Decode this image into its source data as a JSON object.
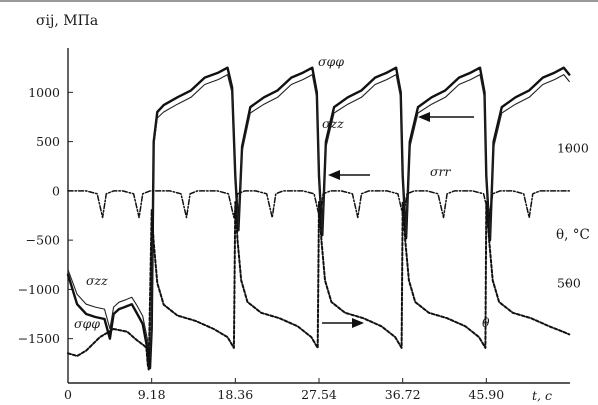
{
  "chart_data": {
    "type": "line",
    "title": "",
    "ylabel": "σij, МПа",
    "xlabel": "t, с",
    "y2label": "θ, °C",
    "xlim": [
      0,
      55.08
    ],
    "ylim": [
      -1950,
      1450
    ],
    "y2lim": [
      130,
      1370
    ],
    "x_ticks": [
      "0",
      "9.18",
      "18.36",
      "27.54",
      "36.72",
      "45.90"
    ],
    "x_tick_values": [
      0,
      9.18,
      18.36,
      27.54,
      36.72,
      45.9
    ],
    "y_ticks": [
      "1000",
      "500",
      "0",
      "−500",
      "−1000",
      "−1500"
    ],
    "y_tick_values": [
      1000,
      500,
      0,
      -500,
      -1000,
      -1500
    ],
    "y2_ticks": [
      "1000",
      "500"
    ],
    "y2_tick_values": [
      1000,
      500
    ],
    "grid": false,
    "series": [
      {
        "name": "σφφ",
        "axis": "left",
        "style": "solid-thick",
        "x": [
          0,
          1.0,
          2.0,
          3.0,
          4.0,
          4.6,
          5.0,
          5.6,
          6.2,
          7.0,
          7.6,
          8.2,
          8.7,
          9.0,
          9.18,
          9.4,
          9.8,
          10.5,
          12.0,
          13.5,
          15.0,
          16.5,
          17.5,
          18.0,
          18.36,
          18.7,
          19.1,
          20.0,
          21.5,
          23.0,
          24.5,
          25.8,
          26.8,
          27.3,
          27.54,
          27.9,
          28.3,
          29.2,
          30.7,
          32.2,
          33.7,
          35.0,
          36.0,
          36.5,
          36.72,
          37.1,
          37.5,
          38.4,
          39.9,
          41.4,
          42.9,
          44.2,
          45.2,
          45.7,
          45.9,
          46.3,
          46.7,
          47.6,
          49.1,
          50.6,
          52.1,
          53.4,
          54.4,
          55.0
        ],
        "y": [
          -850,
          -1150,
          -1250,
          -1280,
          -1300,
          -1500,
          -1250,
          -1200,
          -1180,
          -1150,
          -1250,
          -1350,
          -1600,
          -1800,
          -1400,
          500,
          800,
          870,
          950,
          1020,
          1150,
          1200,
          1250,
          1050,
          150,
          -400,
          450,
          850,
          950,
          1020,
          1150,
          1200,
          1250,
          1000,
          150,
          -450,
          500,
          850,
          950,
          1020,
          1150,
          1200,
          1250,
          1000,
          150,
          -480,
          500,
          850,
          950,
          1020,
          1150,
          1200,
          1250,
          1000,
          150,
          -500,
          500,
          850,
          950,
          1020,
          1150,
          1200,
          1250,
          1180
        ]
      },
      {
        "name": "σzz",
        "axis": "left",
        "style": "solid-thin",
        "x": [
          0,
          1.0,
          2.0,
          3.0,
          4.0,
          4.6,
          5.0,
          5.6,
          6.2,
          7.0,
          7.6,
          8.2,
          8.7,
          9.0,
          9.18,
          9.4,
          9.8,
          10.5,
          12.0,
          13.5,
          15.0,
          16.5,
          17.5,
          18.0,
          18.36,
          18.7,
          19.1,
          20.0,
          21.5,
          23.0,
          24.5,
          25.8,
          26.8,
          27.3,
          27.54,
          27.9,
          28.3,
          29.2,
          30.7,
          32.2,
          33.7,
          35.0,
          36.0,
          36.5,
          36.72,
          37.1,
          37.5,
          38.4,
          39.9,
          41.4,
          42.9,
          44.2,
          45.2,
          45.7,
          45.9,
          46.3,
          46.7,
          47.6,
          49.1,
          50.6,
          52.1,
          53.4,
          54.4,
          55.0
        ],
        "y": [
          -800,
          -1050,
          -1150,
          -1180,
          -1200,
          -1400,
          -1180,
          -1130,
          -1110,
          -1080,
          -1170,
          -1270,
          -1500,
          -1700,
          -1300,
          450,
          740,
          800,
          880,
          950,
          1080,
          1130,
          1180,
          990,
          130,
          -380,
          400,
          790,
          880,
          950,
          1080,
          1130,
          1180,
          940,
          130,
          -420,
          440,
          790,
          880,
          950,
          1080,
          1130,
          1180,
          940,
          130,
          -450,
          440,
          790,
          880,
          950,
          1080,
          1130,
          1180,
          940,
          130,
          -470,
          440,
          790,
          880,
          950,
          1080,
          1130,
          1180,
          1110
        ]
      },
      {
        "name": "σrr",
        "axis": "left",
        "style": "dash-dot",
        "x": [
          0,
          2.0,
          3.2,
          3.8,
          4.2,
          5.0,
          6.0,
          7.2,
          7.8,
          8.2,
          9.0,
          11.2,
          12.4,
          13.0,
          13.4,
          14.2,
          16.4,
          17.6,
          18.2,
          18.6,
          19.4,
          20.6,
          21.8,
          22.4,
          22.8,
          23.6,
          25.8,
          27.0,
          27.6,
          28.0,
          28.8,
          30.0,
          31.2,
          31.8,
          32.2,
          33.0,
          35.0,
          36.2,
          36.8,
          37.2,
          38.0,
          39.4,
          40.6,
          41.2,
          41.6,
          42.4,
          44.4,
          45.6,
          46.2,
          46.6,
          47.4,
          48.8,
          50.0,
          50.6,
          51.0,
          51.8,
          53.4,
          55.0
        ],
        "y": [
          0,
          0,
          -30,
          -270,
          -30,
          0,
          0,
          -30,
          -270,
          -30,
          0,
          0,
          -30,
          -270,
          -30,
          0,
          0,
          -30,
          -270,
          -30,
          0,
          0,
          -30,
          -270,
          -30,
          0,
          0,
          -30,
          -270,
          -30,
          0,
          0,
          -30,
          -270,
          -30,
          0,
          0,
          -30,
          -270,
          -30,
          0,
          0,
          -30,
          -270,
          -30,
          0,
          0,
          -30,
          -270,
          -30,
          0,
          0,
          -30,
          -270,
          -30,
          0,
          0,
          0
        ]
      },
      {
        "name": "θ",
        "axis": "right",
        "style": "dashed",
        "x": [
          0,
          1.0,
          2.0,
          3.5,
          5.0,
          6.5,
          7.5,
          8.3,
          8.6,
          8.75,
          8.85,
          9.18,
          9.4,
          9.8,
          10.5,
          12.0,
          14.0,
          16.0,
          17.5,
          18.2,
          18.36,
          18.6,
          19.0,
          19.7,
          21.2,
          23.2,
          25.2,
          26.7,
          27.4,
          27.54,
          27.8,
          28.2,
          28.9,
          30.4,
          32.4,
          34.4,
          35.9,
          36.6,
          36.72,
          37.0,
          37.4,
          38.1,
          39.6,
          41.6,
          43.6,
          45.1,
          45.8,
          45.9,
          46.2,
          46.6,
          47.3,
          48.8,
          50.8,
          52.8,
          54.3,
          55.0
        ],
        "y": [
          240,
          230,
          250,
          300,
          330,
          320,
          290,
          270,
          260,
          200,
          180,
          770,
          650,
          500,
          420,
          380,
          360,
          330,
          300,
          260,
          800,
          660,
          510,
          430,
          390,
          370,
          340,
          300,
          260,
          800,
          660,
          510,
          430,
          390,
          370,
          340,
          300,
          260,
          800,
          660,
          510,
          430,
          390,
          370,
          340,
          300,
          260,
          800,
          660,
          510,
          430,
          390,
          370,
          340,
          320,
          310
        ]
      }
    ],
    "annotations": [
      {
        "text": "σφφ",
        "near": "upper-series-label"
      },
      {
        "text": "σzz",
        "near": "upper-series-label"
      },
      {
        "text": "σrr",
        "near": "dash-dot-label"
      },
      {
        "text": "σzz",
        "near": "lower-left-label"
      },
      {
        "text": "σφφ",
        "near": "lower-left-label"
      },
      {
        "text": "θ",
        "near": "temperature-label"
      }
    ]
  }
}
